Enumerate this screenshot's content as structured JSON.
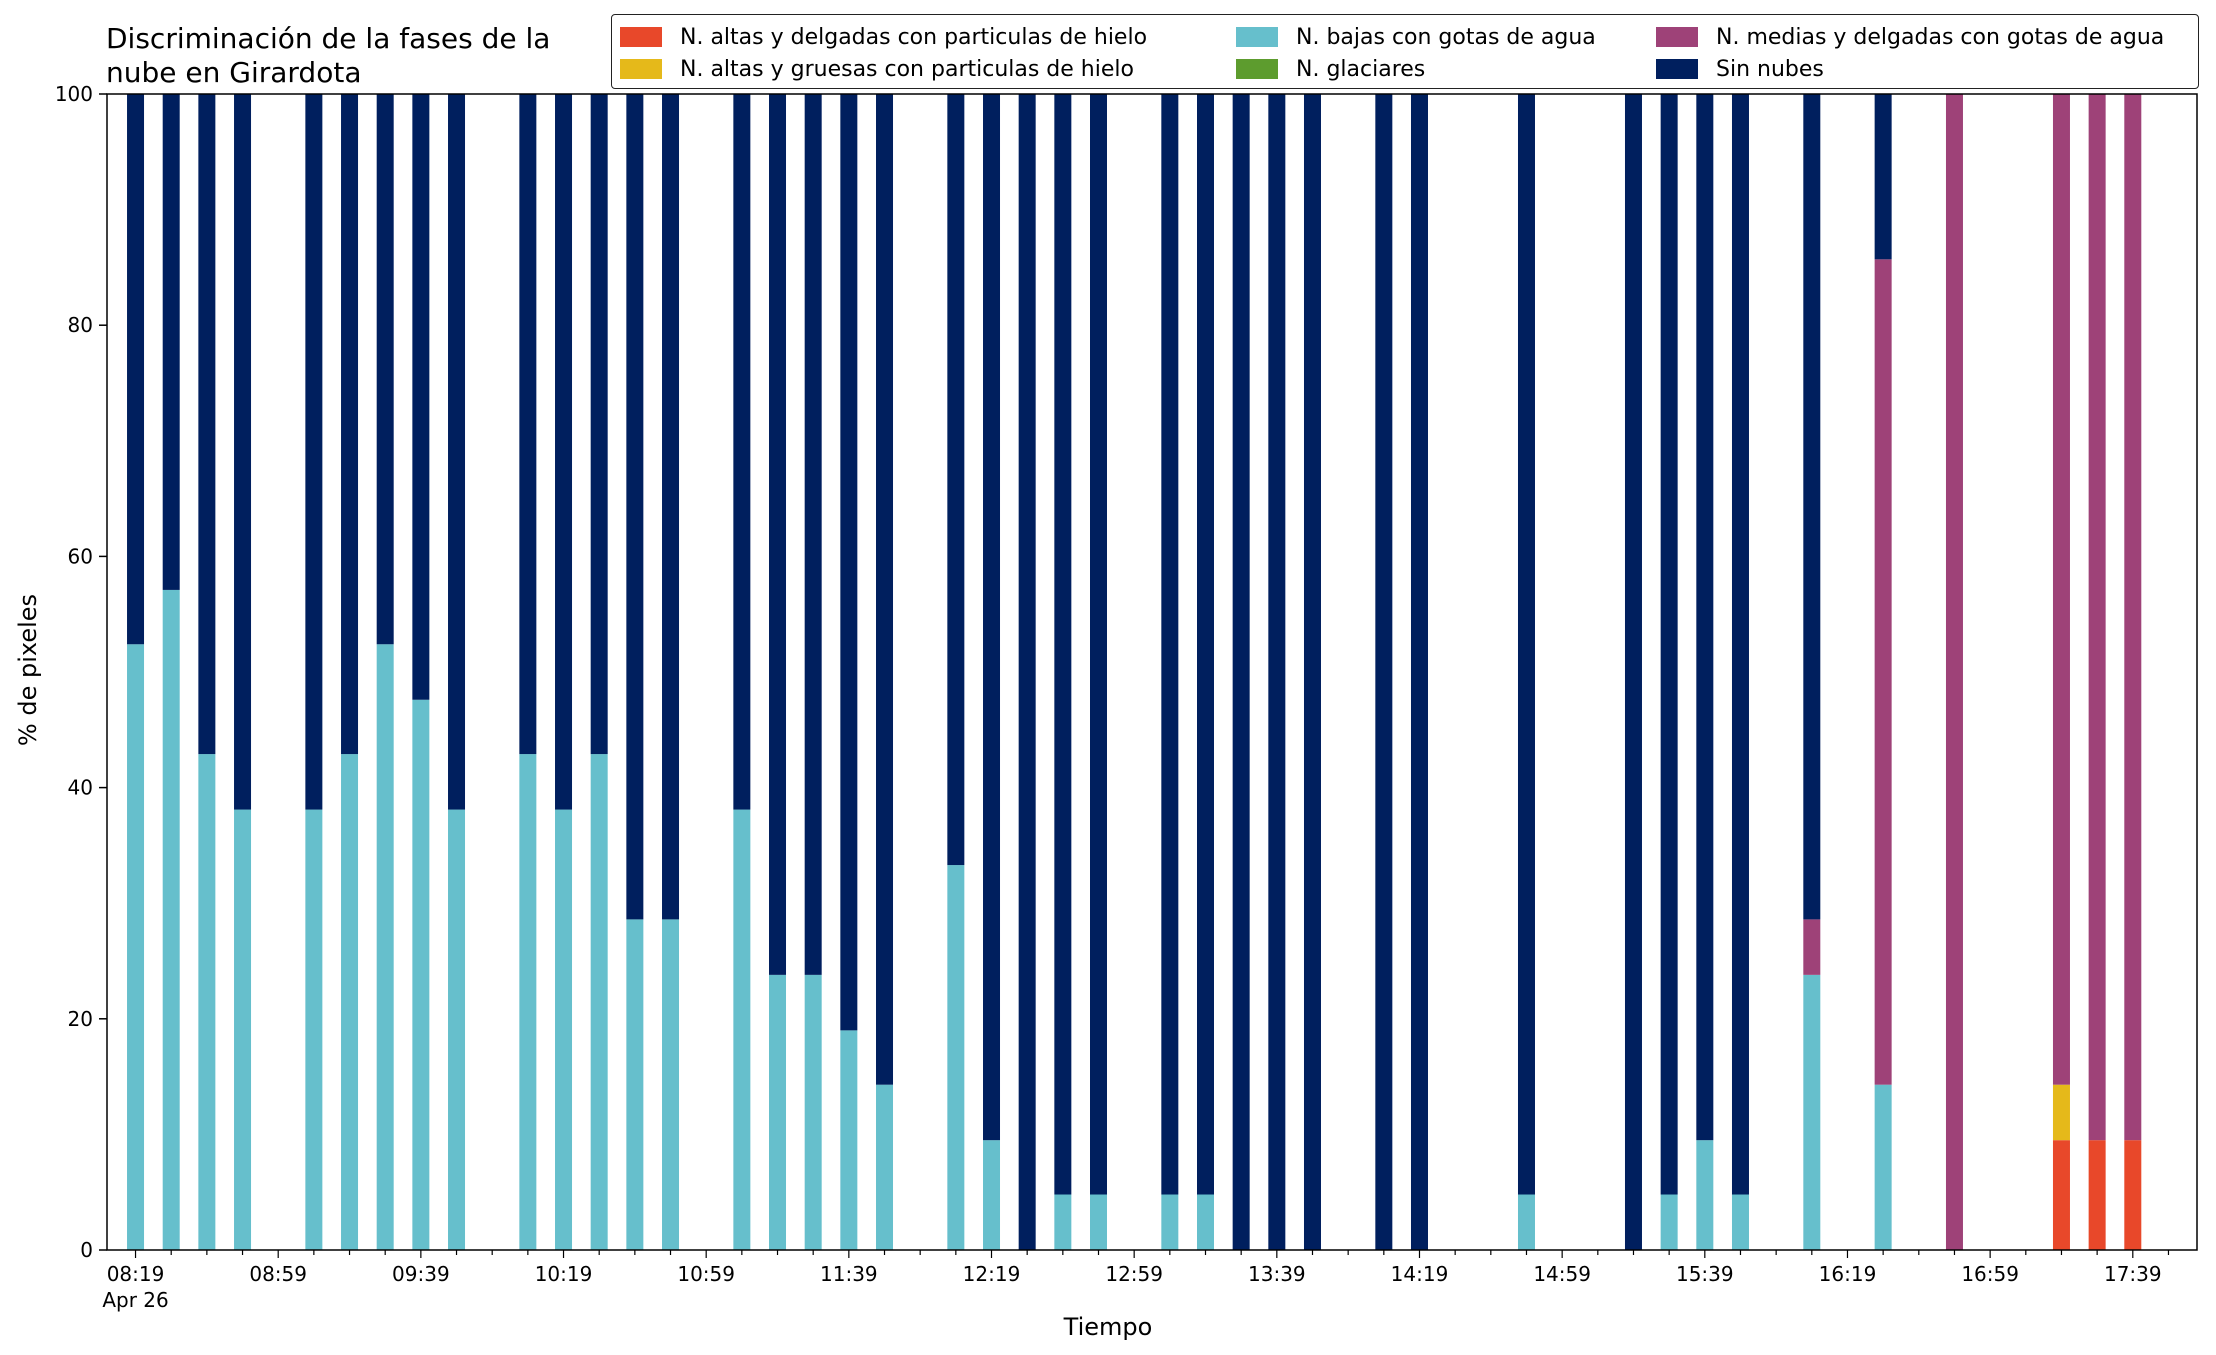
{
  "chart_data": {
    "type": "bar",
    "stacked": true,
    "title": "Discriminación de la fases de la\nnube en Girardota",
    "xlabel": "Tiempo",
    "ylabel": "% de pixeles",
    "ylim": [
      0,
      100
    ],
    "yticks": [
      0,
      20,
      40,
      60,
      80,
      100
    ],
    "x_range": [
      "08:11",
      "17:57"
    ],
    "x_tick_labels": [
      {
        "time": "08:19",
        "label": "08:19",
        "sublabel": "Apr 26"
      },
      {
        "time": "08:59",
        "label": "08:59"
      },
      {
        "time": "09:39",
        "label": "09:39"
      },
      {
        "time": "10:19",
        "label": "10:19"
      },
      {
        "time": "10:59",
        "label": "10:59"
      },
      {
        "time": "11:39",
        "label": "11:39"
      },
      {
        "time": "12:19",
        "label": "12:19"
      },
      {
        "time": "12:59",
        "label": "12:59"
      },
      {
        "time": "13:39",
        "label": "13:39"
      },
      {
        "time": "14:19",
        "label": "14:19"
      },
      {
        "time": "14:59",
        "label": "14:59"
      },
      {
        "time": "15:39",
        "label": "15:39"
      },
      {
        "time": "16:19",
        "label": "16:19"
      },
      {
        "time": "16:59",
        "label": "16:59"
      },
      {
        "time": "17:39",
        "label": "17:39"
      }
    ],
    "x": [
      "08:19",
      "08:29",
      "08:39",
      "08:49",
      "09:09",
      "09:19",
      "09:29",
      "09:39",
      "09:49",
      "10:09",
      "10:19",
      "10:29",
      "10:39",
      "10:49",
      "11:09",
      "11:19",
      "11:29",
      "11:39",
      "11:49",
      "12:09",
      "12:19",
      "12:29",
      "12:39",
      "12:49",
      "13:09",
      "13:19",
      "13:29",
      "13:39",
      "13:49",
      "14:09",
      "14:19",
      "14:49",
      "15:19",
      "15:29",
      "15:39",
      "15:49",
      "16:09",
      "16:29",
      "16:49",
      "17:19",
      "17:29",
      "17:39"
    ],
    "series": [
      {
        "name": "N. altas y delgadas con particulas de hielo",
        "color": "#e8482a",
        "values": [
          0,
          0,
          0,
          0,
          0,
          0,
          0,
          0,
          0,
          0,
          0,
          0,
          0,
          0,
          0,
          0,
          0,
          0,
          0,
          0,
          0,
          0,
          0,
          0,
          0,
          0,
          0,
          0,
          0,
          0,
          0,
          0,
          0,
          0,
          0,
          0,
          0,
          0,
          0,
          9.5,
          9.5,
          9.5
        ]
      },
      {
        "name": "N. altas y gruesas con particulas de hielo",
        "color": "#e5b91a",
        "values": [
          0,
          0,
          0,
          0,
          0,
          0,
          0,
          0,
          0,
          0,
          0,
          0,
          0,
          0,
          0,
          0,
          0,
          0,
          0,
          0,
          0,
          0,
          0,
          0,
          0,
          0,
          0,
          0,
          0,
          0,
          0,
          0,
          0,
          0,
          0,
          0,
          0,
          0,
          0,
          4.8,
          0,
          0
        ]
      },
      {
        "name": "N. bajas con gotas de agua",
        "color": "#66bfcc",
        "values": [
          52.4,
          57.1,
          42.9,
          38.1,
          38.1,
          42.9,
          52.4,
          47.6,
          38.1,
          42.9,
          38.1,
          42.9,
          28.6,
          28.6,
          38.1,
          23.8,
          23.8,
          19.0,
          14.3,
          33.3,
          9.5,
          0,
          4.8,
          4.8,
          4.8,
          4.8,
          0,
          0,
          0,
          0,
          0,
          4.8,
          0,
          4.8,
          9.5,
          4.8,
          23.8,
          14.3,
          0,
          0,
          0,
          0
        ]
      },
      {
        "name": "N. glaciares",
        "color": "#5d9c2e",
        "values": [
          0,
          0,
          0,
          0,
          0,
          0,
          0,
          0,
          0,
          0,
          0,
          0,
          0,
          0,
          0,
          0,
          0,
          0,
          0,
          0,
          0,
          0,
          0,
          0,
          0,
          0,
          0,
          0,
          0,
          0,
          0,
          0,
          0,
          0,
          0,
          0,
          0,
          0,
          0,
          0,
          0,
          0
        ]
      },
      {
        "name": "N. medias y delgadas con gotas de agua",
        "color": "#9e4278",
        "values": [
          0,
          0,
          0,
          0,
          0,
          0,
          0,
          0,
          0,
          0,
          0,
          0,
          0,
          0,
          0,
          0,
          0,
          0,
          0,
          0,
          0,
          0,
          0,
          0,
          0,
          0,
          0,
          0,
          0,
          0,
          0,
          0,
          0,
          0,
          0,
          0,
          4.8,
          71.4,
          100,
          85.7,
          90.5,
          90.5
        ]
      },
      {
        "name": "Sin nubes",
        "color": "#001f5e",
        "values": [
          47.6,
          42.9,
          57.1,
          61.9,
          61.9,
          57.1,
          47.6,
          52.4,
          61.9,
          57.1,
          61.9,
          57.1,
          71.4,
          71.4,
          61.9,
          76.2,
          76.2,
          81.0,
          85.7,
          66.7,
          90.5,
          100,
          95.2,
          95.2,
          95.2,
          95.2,
          100,
          100,
          100,
          100,
          100,
          95.2,
          100,
          95.2,
          90.5,
          95.2,
          71.4,
          14.3,
          0,
          0,
          0,
          0
        ]
      }
    ],
    "legend": {
      "placement": "top-right",
      "columns": 3,
      "items": [
        {
          "label": "N. altas y delgadas con particulas de hielo",
          "color": "#e8482a"
        },
        {
          "label": "N. altas y gruesas con particulas de hielo",
          "color": "#e5b91a"
        },
        {
          "label": "N. bajas con gotas de agua",
          "color": "#66bfcc"
        },
        {
          "label": "N. glaciares",
          "color": "#5d9c2e"
        },
        {
          "label": "N. medias y delgadas con gotas de agua",
          "color": "#9e4278"
        },
        {
          "label": "Sin nubes",
          "color": "#001f5e"
        }
      ]
    }
  }
}
